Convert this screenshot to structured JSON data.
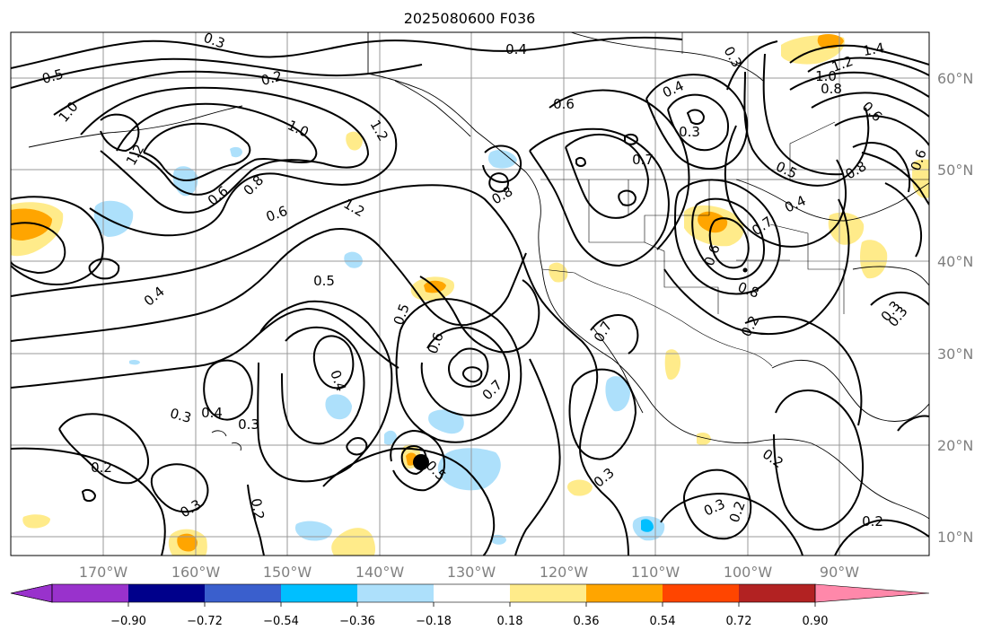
{
  "title": "2025080600 F036",
  "map": {
    "lon_range": [
      -180,
      -80
    ],
    "lat_range": [
      8,
      65
    ],
    "grid": true,
    "lon_ticks": [
      "170°W",
      "160°W",
      "150°W",
      "140°W",
      "130°W",
      "120°W",
      "110°W",
      "100°W",
      "90°W"
    ],
    "lat_ticks": [
      "60°N",
      "50°N",
      "40°N",
      "30°N",
      "20°N",
      "10°N"
    ],
    "contour_labels": [
      "0.3",
      "0.4",
      "0.5",
      "1.0",
      "1.2",
      "1.0",
      "1.2",
      "0.6",
      "0.8",
      "0.6",
      "0.8",
      "0.5",
      "0.4",
      "0.5",
      "0.6",
      "0.7",
      "0.4",
      "0.3",
      "0.6",
      "0.7",
      "0.3",
      "0.4",
      "0.3",
      "0.2",
      "0.3",
      "0.2",
      "0.5",
      "0.3",
      "0.2",
      "0.3",
      "0.2",
      "1.4",
      "1.2",
      "1.0",
      "0.8",
      "0.6",
      "0.8",
      "0.5",
      "0.4",
      "0.7",
      "0.6",
      "0.8",
      "0.2",
      "0.3",
      "0.6",
      "0.4",
      "0.7",
      "1.2",
      "0.3",
      "0.2",
      "0.3",
      "0.2"
    ],
    "marker": "storm-center"
  },
  "colorbar": {
    "colors": [
      "#9932CC",
      "#00008B",
      "#3A5FCD",
      "#00BFFF",
      "#ADE0FB",
      "#FFFFFF",
      "#FFEB8A",
      "#FFA500",
      "#FF4500",
      "#B22222",
      "#FF88AA"
    ],
    "ticks": [
      "−0.90",
      "−0.72",
      "−0.54",
      "−0.36",
      "−0.18",
      "0.18",
      "0.36",
      "0.54",
      "0.72",
      "0.90"
    ]
  }
}
